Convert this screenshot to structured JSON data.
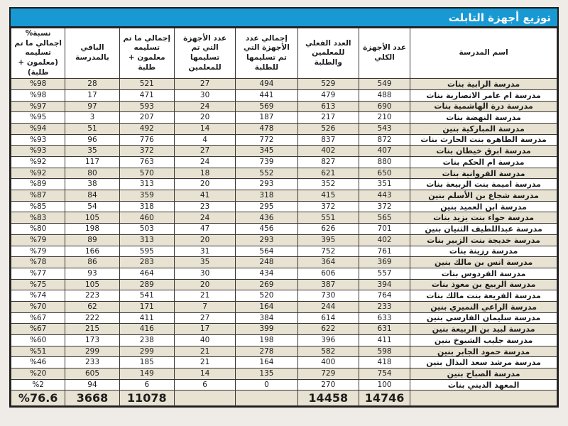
{
  "title": "توزيع أجهزة التابلت",
  "colors": {
    "title_bar_blue": "#1899d3",
    "row_stripe_beige": "#e7e2d2",
    "row_white": "#ffffff",
    "grid_border": "#3a3633",
    "page_background": "#efece8"
  },
  "columns": {
    "school": "اسم المدرسة",
    "total_devices": "عدد الأجهزة الكلي",
    "actual_count": "العدد الفعلي للمعلمين والطلبة",
    "students_delivered": "إجمالي عدد الأجهزة التي تم تسليمها للطلبة",
    "teachers_delivered": "عدد الأجهزة التي تم تسليمها للمعلمين",
    "total_delivered": "إجمالي ما تم تسليمه معلمون + طلبة",
    "remaining": "الباقي بالمدرسة",
    "pct": "نسبة% اجمالي ما تم تسليمه (معلمون + طلبة)"
  },
  "rows": [
    {
      "school": "مدرسة الرابية بنات",
      "total": "549",
      "actual": "529",
      "students": "494",
      "teachers": "27",
      "delivered": "521",
      "remaining": "28",
      "pct": "%98"
    },
    {
      "school": "مدرسة ام عامر الانصارية بنات",
      "total": "488",
      "actual": "479",
      "students": "441",
      "teachers": "30",
      "delivered": "471",
      "remaining": "17",
      "pct": "%98"
    },
    {
      "school": "مدرسة درة الهاشمية بنات",
      "total": "690",
      "actual": "613",
      "students": "569",
      "teachers": "24",
      "delivered": "593",
      "remaining": "97",
      "pct": "%97"
    },
    {
      "school": "مدرسة النهضة بنات",
      "total": "210",
      "actual": "217",
      "students": "187",
      "teachers": "20",
      "delivered": "207",
      "remaining": "3",
      "pct": "%95"
    },
    {
      "school": "مدرسة المباركية بنين",
      "total": "543",
      "actual": "526",
      "students": "478",
      "teachers": "14",
      "delivered": "492",
      "remaining": "51",
      "pct": "%94"
    },
    {
      "school": "مدرسة الطاهره بنت الحارث بنات",
      "total": "872",
      "actual": "837",
      "students": "772",
      "teachers": "4",
      "delivered": "776",
      "remaining": "96",
      "pct": "%93"
    },
    {
      "school": "مدرسة ابرق خيطان بنات",
      "total": "407",
      "actual": "402",
      "students": "345",
      "teachers": "27",
      "delivered": "372",
      "remaining": "35",
      "pct": "%93"
    },
    {
      "school": "مدرسة ام الحكم بنات",
      "total": "880",
      "actual": "827",
      "students": "739",
      "teachers": "24",
      "delivered": "763",
      "remaining": "117",
      "pct": "%92"
    },
    {
      "school": "مدرسة الفروانية بنات",
      "total": "650",
      "actual": "621",
      "students": "552",
      "teachers": "18",
      "delivered": "570",
      "remaining": "80",
      "pct": "%92"
    },
    {
      "school": "مدرسة اميمة بنت الربيعة بنات",
      "total": "351",
      "actual": "352",
      "students": "293",
      "teachers": "20",
      "delivered": "313",
      "remaining": "38",
      "pct": "%89"
    },
    {
      "school": "مدرسة شجاع بن الأسلم بنين",
      "total": "443",
      "actual": "415",
      "students": "318",
      "teachers": "41",
      "delivered": "359",
      "remaining": "84",
      "pct": "%87"
    },
    {
      "school": "مدرسة ابن العميد بنين",
      "total": "372",
      "actual": "372",
      "students": "295",
      "teachers": "23",
      "delivered": "318",
      "remaining": "54",
      "pct": "%85"
    },
    {
      "school": "مدرسة حواء بنت يزيد بنات",
      "total": "565",
      "actual": "551",
      "students": "436",
      "teachers": "24",
      "delivered": "460",
      "remaining": "105",
      "pct": "%83"
    },
    {
      "school": "مدرسة عبداللطيف الثنيان بنين",
      "total": "701",
      "actual": "626",
      "students": "456",
      "teachers": "47",
      "delivered": "503",
      "remaining": "198",
      "pct": "%80"
    },
    {
      "school": "مدرسة خديجة بنت الزبير بنات",
      "total": "402",
      "actual": "395",
      "students": "293",
      "teachers": "20",
      "delivered": "313",
      "remaining": "89",
      "pct": "%79"
    },
    {
      "school": "مدرسة رزينة بنات",
      "total": "761",
      "actual": "752",
      "students": "564",
      "teachers": "31",
      "delivered": "595",
      "remaining": "166",
      "pct": "%79"
    },
    {
      "school": "مدرسة انس بن مالك بنين",
      "total": "369",
      "actual": "364",
      "students": "248",
      "teachers": "35",
      "delivered": "283",
      "remaining": "86",
      "pct": "%78"
    },
    {
      "school": "مدرسة الفردوس بنات",
      "total": "557",
      "actual": "606",
      "students": "434",
      "teachers": "30",
      "delivered": "464",
      "remaining": "93",
      "pct": "%77"
    },
    {
      "school": "مدرسة الربيع بن معوذ بنات",
      "total": "394",
      "actual": "387",
      "students": "269",
      "teachers": "20",
      "delivered": "289",
      "remaining": "105",
      "pct": "%75"
    },
    {
      "school": "مدرسة الفريعة بنت مالك بنات",
      "total": "764",
      "actual": "730",
      "students": "520",
      "teachers": "21",
      "delivered": "541",
      "remaining": "223",
      "pct": "%74"
    },
    {
      "school": "مدرسة الراعي النميري بنين",
      "total": "233",
      "actual": "244",
      "students": "164",
      "teachers": "7",
      "delivered": "171",
      "remaining": "62",
      "pct": "%70"
    },
    {
      "school": "مدرسة سليمان الفارسي بنين",
      "total": "633",
      "actual": "614",
      "students": "384",
      "teachers": "27",
      "delivered": "411",
      "remaining": "222",
      "pct": "%67"
    },
    {
      "school": "مدرسة لبيد بن الربيعة بنين",
      "total": "631",
      "actual": "622",
      "students": "399",
      "teachers": "17",
      "delivered": "416",
      "remaining": "215",
      "pct": "%67"
    },
    {
      "school": "مدرسة جليب الشيوخ بنين",
      "total": "411",
      "actual": "396",
      "students": "198",
      "teachers": "40",
      "delivered": "238",
      "remaining": "173",
      "pct": "%60"
    },
    {
      "school": "مدرسة حمود الجابر بنين",
      "total": "598",
      "actual": "582",
      "students": "278",
      "teachers": "21",
      "delivered": "299",
      "remaining": "299",
      "pct": "%51"
    },
    {
      "school": "مدرسة مرشد سعد البذال بنين",
      "total": "418",
      "actual": "400",
      "students": "164",
      "teachers": "21",
      "delivered": "185",
      "remaining": "233",
      "pct": "%46"
    },
    {
      "school": "مدرسة الصباح بنين",
      "total": "754",
      "actual": "729",
      "students": "135",
      "teachers": "14",
      "delivered": "149",
      "remaining": "605",
      "pct": "%20"
    },
    {
      "school": "المعهد الديني بنات",
      "total": "100",
      "actual": "270",
      "students": "0",
      "teachers": "6",
      "delivered": "6",
      "remaining": "94",
      "pct": "%2"
    }
  ],
  "totals": {
    "school": "",
    "total": "14746",
    "actual": "14458",
    "students": "",
    "teachers": "",
    "delivered": "11078",
    "remaining": "3668",
    "pct": "%76.6"
  }
}
